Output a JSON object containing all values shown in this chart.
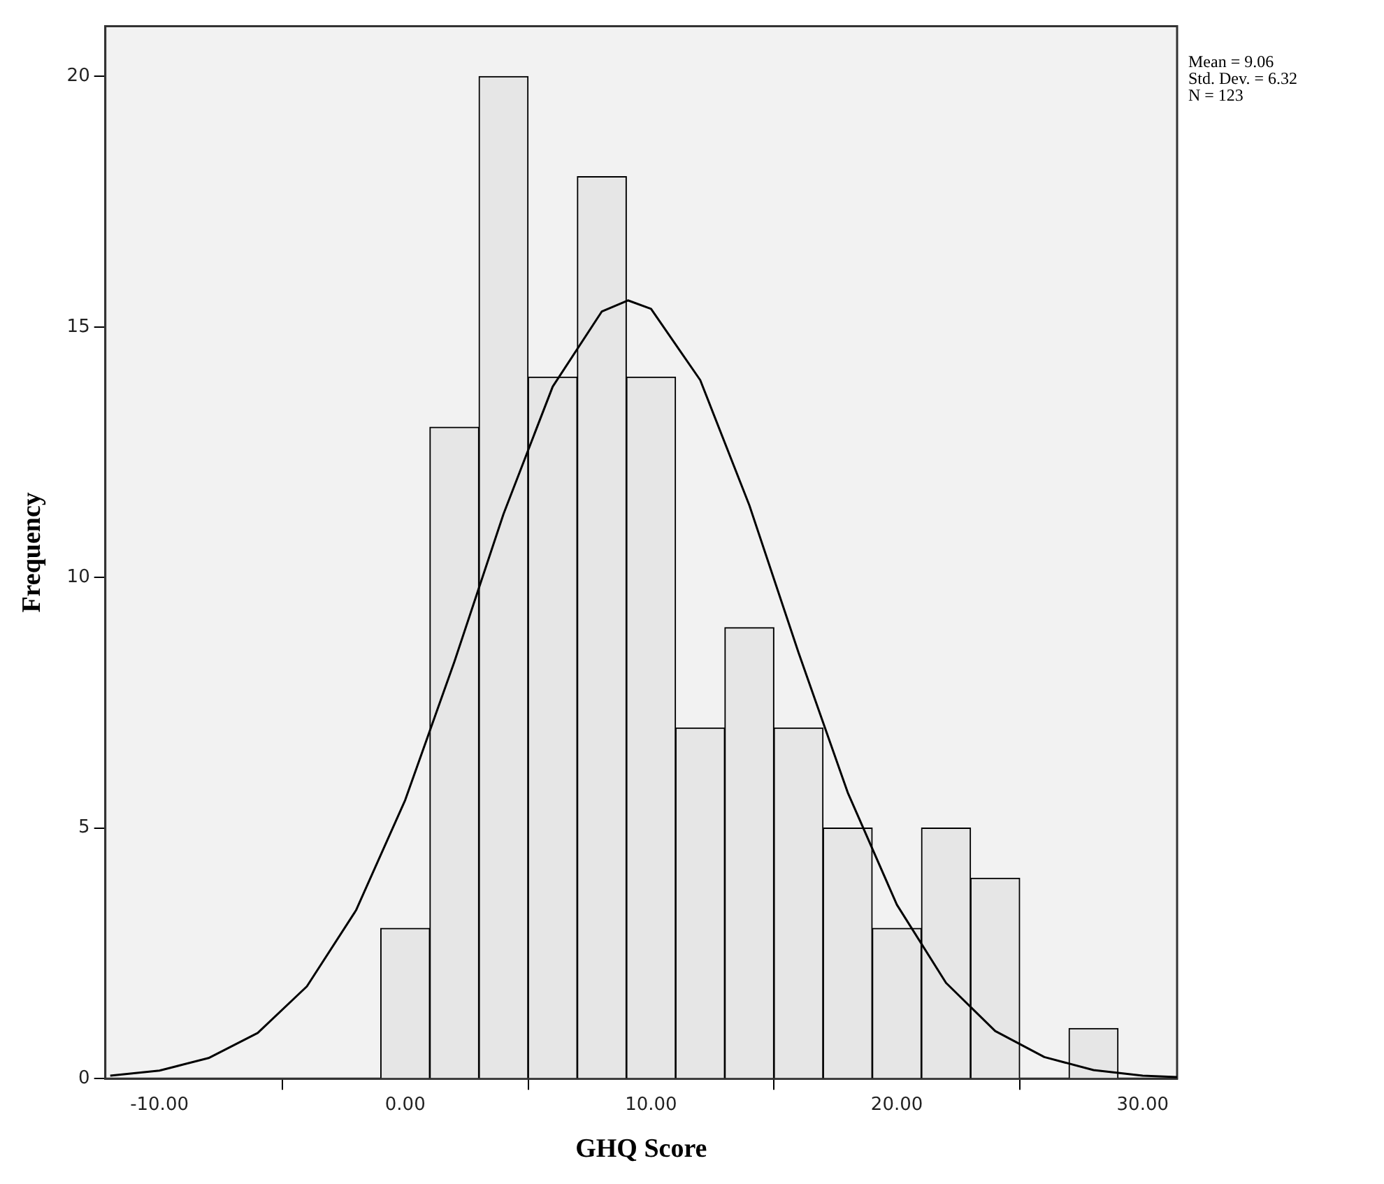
{
  "chart_data": {
    "type": "histogram",
    "xlabel": "GHQ Score",
    "ylabel": "Frequency",
    "bins": [
      -1,
      1,
      3,
      5,
      7,
      9,
      11,
      13,
      15,
      17,
      19,
      21,
      23,
      25,
      27,
      29
    ],
    "values": [
      3,
      13,
      20,
      14,
      18,
      14,
      7,
      9,
      7,
      5,
      3,
      5,
      4,
      0,
      1
    ],
    "color": "#e6e6e6",
    "series": [
      {
        "type": "line",
        "color": "#000000",
        "x": [
          -12,
          -10,
          -8,
          -6,
          -4,
          -2,
          0,
          2,
          4,
          6,
          8,
          9.06,
          10,
          12,
          14,
          16,
          18,
          20,
          22,
          24,
          26,
          28,
          30,
          31.4
        ],
        "values": [
          0.06,
          0.16,
          0.41,
          0.91,
          1.84,
          3.36,
          5.56,
          8.32,
          11.27,
          13.81,
          15.31,
          15.53,
          15.36,
          13.94,
          11.44,
          8.5,
          5.71,
          3.47,
          1.91,
          0.95,
          0.43,
          0.17,
          0.06,
          0.03
        ]
      }
    ],
    "xlim": [
      -12.2,
      31.4
    ],
    "ylim": [
      0,
      21
    ],
    "xticks": [
      {
        "value": -10,
        "label": "-10.00"
      },
      {
        "value": 0,
        "label": "0.00"
      },
      {
        "value": 10,
        "label": "10.00"
      },
      {
        "value": 20,
        "label": "20.00"
      },
      {
        "value": 30,
        "label": "30.00"
      }
    ],
    "yticks": [
      0,
      5,
      10,
      15,
      20
    ],
    "annotations": [
      "Mean = 9.06",
      "Std. Dev. = 6.32",
      "N = 123"
    ],
    "grid": false,
    "legend": false,
    "marker": "none"
  }
}
